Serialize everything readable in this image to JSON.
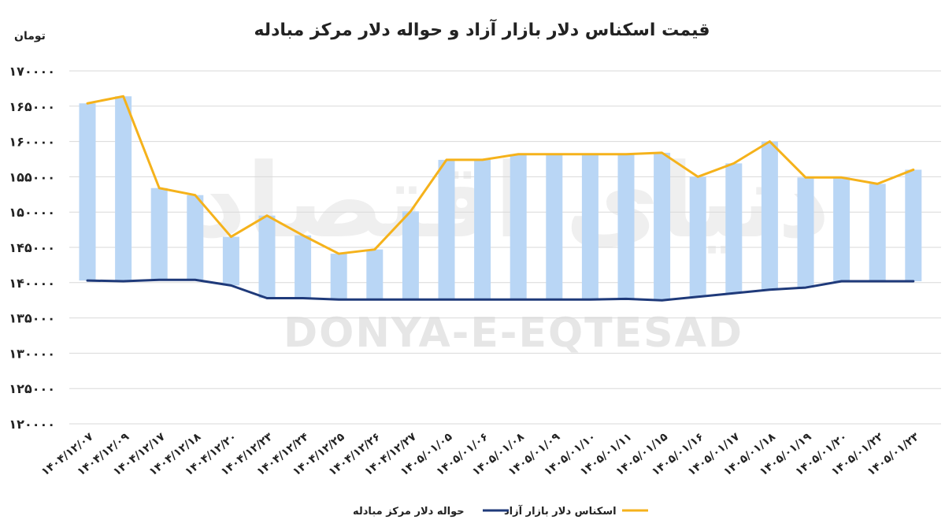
{
  "chart_data": {
    "type": "line",
    "title": "قیمت اسکناس دلار بازار آزاد و حواله دلار مرکز مبادله",
    "unit_label": "تومان",
    "ylim": [
      120000,
      170000
    ],
    "y_ticks": [
      "۱۷۰۰۰۰",
      "۱۶۵۰۰۰",
      "۱۶۰۰۰۰",
      "۱۵۵۰۰۰",
      "۱۵۰۰۰۰",
      "۱۴۵۰۰۰",
      "۱۴۰۰۰۰",
      "۱۳۵۰۰۰",
      "۱۳۰۰۰۰",
      "۱۲۵۰۰۰",
      "۱۲۰۰۰۰"
    ],
    "y_tick_values": [
      170000,
      165000,
      160000,
      155000,
      150000,
      145000,
      140000,
      135000,
      130000,
      125000,
      120000
    ],
    "categories": [
      "۱۴۰۴/۱۲/۰۷",
      "۱۴۰۴/۱۲/۰۹",
      "۱۴۰۴/۱۲/۱۷",
      "۱۴۰۴/۱۲/۱۸",
      "۱۴۰۴/۱۲/۲۰",
      "۱۴۰۴/۱۲/۲۳",
      "۱۴۰۴/۱۲/۲۴",
      "۱۴۰۴/۱۲/۲۵",
      "۱۴۰۴/۱۲/۲۶",
      "۱۴۰۴/۱۲/۲۷",
      "۱۴۰۵/۰۱/۰۵",
      "۱۴۰۵/۰۱/۰۶",
      "۱۴۰۵/۰۱/۰۸",
      "۱۴۰۵/۰۱/۰۹",
      "۱۴۰۵/۰۱/۱۰",
      "۱۴۰۵/۰۱/۱۱",
      "۱۴۰۵/۰۱/۱۵",
      "۱۴۰۵/۰۱/۱۶",
      "۱۴۰۵/۰۱/۱۷",
      "۱۴۰۵/۰۱/۱۸",
      "۱۴۰۵/۰۱/۱۹",
      "۱۴۰۵/۰۱/۲۰",
      "۱۴۰۵/۰۱/۲۲",
      "۱۴۰۵/۰۱/۲۳"
    ],
    "series": [
      {
        "name": "اسکناس دلار بازار آزاد",
        "color": "#f5b21b",
        "values": [
          165400,
          166400,
          153400,
          152400,
          146500,
          149500,
          146700,
          144100,
          144700,
          150100,
          157400,
          157400,
          158200,
          158200,
          158200,
          158200,
          158400,
          155000,
          156900,
          160000,
          154900,
          154900,
          154000,
          156000
        ]
      },
      {
        "name": "حواله دلار مرکز مبادله",
        "color": "#1f3a7a",
        "values": [
          140300,
          140200,
          140400,
          140400,
          139600,
          137800,
          137800,
          137600,
          137600,
          137600,
          137600,
          137600,
          137600,
          137600,
          137600,
          137700,
          137500,
          138000,
          138500,
          139000,
          139300,
          140200,
          140200,
          140200
        ]
      }
    ],
    "spread_bar_color": "#b9d6f5",
    "legend_position": "bottom",
    "grid": true
  },
  "watermark": {
    "text": "DONYA-E-EQTESAD",
    "logo_text": "دنیای اقتصاد"
  }
}
